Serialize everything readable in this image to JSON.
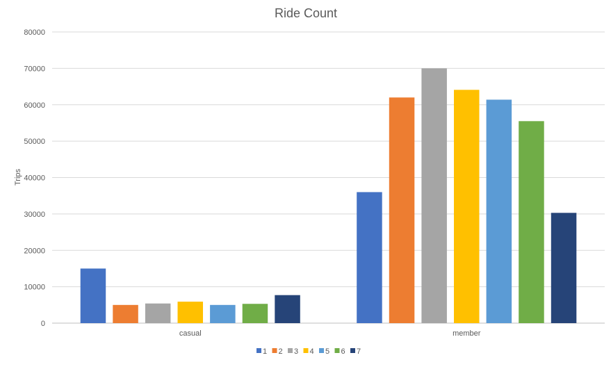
{
  "chart_data": {
    "type": "bar",
    "title": "Ride Count",
    "xlabel": "",
    "ylabel": "Trips",
    "ylim": [
      0,
      80000
    ],
    "yticks": [
      "0",
      "10000",
      "20000",
      "30000",
      "40000",
      "50000",
      "60000",
      "70000",
      "80000"
    ],
    "categories": [
      "casual",
      "member"
    ],
    "series": [
      {
        "name": "1",
        "color": "#4472C4",
        "values": [
          15000,
          36000
        ]
      },
      {
        "name": "2",
        "color": "#ED7D31",
        "values": [
          5000,
          62000
        ]
      },
      {
        "name": "3",
        "color": "#A5A5A5",
        "values": [
          5400,
          70000
        ]
      },
      {
        "name": "4",
        "color": "#FFC000",
        "values": [
          5900,
          64100
        ]
      },
      {
        "name": "5",
        "color": "#5B9BD5",
        "values": [
          5000,
          61400
        ]
      },
      {
        "name": "6",
        "color": "#70AD47",
        "values": [
          5300,
          55500
        ]
      },
      {
        "name": "7",
        "color": "#264478",
        "values": [
          7700,
          30300
        ]
      }
    ],
    "grid": true,
    "legend_position": "bottom"
  }
}
